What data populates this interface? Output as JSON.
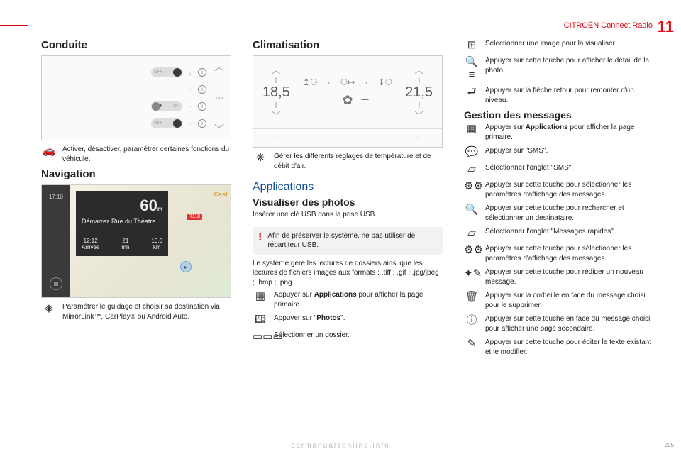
{
  "header": {
    "section": "CITROËN Connect Radio",
    "chapter_num": "11",
    "footer_page": "205",
    "watermark": "carmanualsonline.info"
  },
  "col1": {
    "h_conduite": "Conduite",
    "conduite_panel": {
      "rows": [
        {
          "off": "OFF",
          "on": "ON",
          "state": "on"
        },
        {
          "state": "none"
        },
        {
          "off": "OFF",
          "on": "ON",
          "state": "off"
        },
        {
          "off": "OFF",
          "on": "ON",
          "state": "on"
        }
      ]
    },
    "conduite_text": "Activer, désactiver, paramétrer certaines fonctions du véhicule.",
    "h_nav": "Navigation",
    "nav": {
      "time": "17:10",
      "speed": "60",
      "speed_unit": "m",
      "addr": "Démarrez Rue du Théatre",
      "b1t": "12:12",
      "b1l": "Arrivée",
      "b2t": "21",
      "b2l": "mn",
      "b3t": "10,0",
      "b3l": "km",
      "road": "R118",
      "cast": "Cast"
    },
    "nav_text": "Paramétrer le guidage et choisir sa destination via MirrorLink™, CarPlay® ou Android Auto."
  },
  "col2": {
    "h_clim": "Climatisation",
    "clim": {
      "left": "18,5",
      "right": "21,5"
    },
    "clim_text": "Gérer les différents réglages de température et de débit d'air.",
    "h_apps": "Applications",
    "h_photos": "Visualiser des photos",
    "photos_intro": "Insérer une clé USB dans la prise USB.",
    "note": "Afin de préserver le système, ne pas utiliser de répartiteur USB.",
    "photos_p": "Le système gère les lectures de dossiers ainsi que les lectures de fichiers images aux formats : .tiff ; .gif ; .jpg/jpeg ; .bmp ; .png.",
    "it1a": "Appuyer sur ",
    "it1b": "Applications",
    "it1c": " pour afficher la page primaire.",
    "it2a": "Appuyer sur \"",
    "it2b": "Photos",
    "it2c": "\".",
    "it3": "Sélectionner un dossier."
  },
  "col3": {
    "i1": "Sélectionner une image pour la visualiser.",
    "i2": "Appuyer sur cette touche pour afficher le détail de la photo.",
    "i3": "Appuyer sur la flèche retour pour remonter d'un niveau.",
    "h_msg": "Gestion des messages",
    "m1a": "Appuyer sur ",
    "m1b": "Applications",
    "m1c": " pour afficher la page primaire.",
    "m2": "Appuyer sur \"SMS\".",
    "m3": "Sélectionner l'onglet \"SMS\".",
    "m4": "Appuyer sur cette touche pour sélectionner les paramètres d'affichage des messages.",
    "m5": "Appuyer sur cette touche pour rechercher et sélectionner un destinataire.",
    "m6": "Sélectionner l'onglet \"Messages rapides\".",
    "m7": "Appuyer sur cette touche pour sélectionner les paramètres d'affichage des messages.",
    "m8": "Appuyer sur cette touche pour rédiger un nouveau message.",
    "m9": "Appuyer sur la corbeille en face du message choisi pour le supprimer.",
    "m10": "Appuyer sur cette touche en face du message choisi pour afficher une page secondaire.",
    "m11": "Appuyer sur cette touche pour éditer le texte existant et le modifier."
  }
}
